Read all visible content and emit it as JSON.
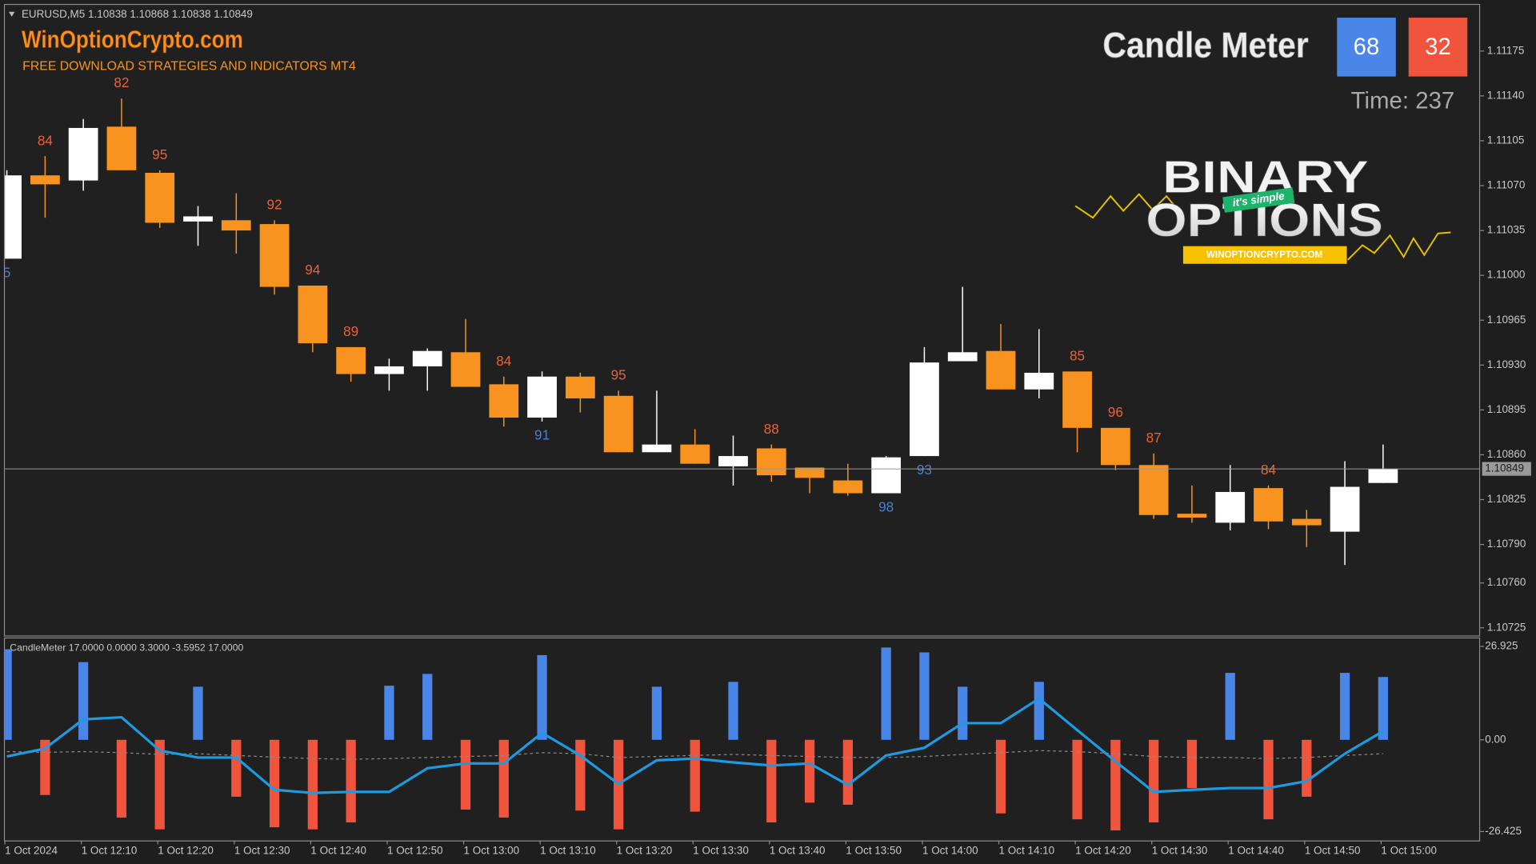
{
  "header": {
    "symbol_info": "EURUSD,M5  1.10838 1.10868 1.10838 1.10849"
  },
  "watermark": {
    "site": "WinOptionCrypto.com",
    "tagline": "FREE DOWNLOAD STRATEGIES AND INDICATORS MT4"
  },
  "meter": {
    "title": "Candle Meter",
    "buy": 68,
    "sell": 32,
    "time_label": "Time: 237",
    "buy_color": "#4a86e8",
    "sell_color": "#f0543c"
  },
  "logo": {
    "line1": "BINARY",
    "ribbon": "it's simple",
    "line2": "OPTIONS",
    "site": "WINOPTIONCRYPTO.COM"
  },
  "chart_data": [
    {
      "type": "candlestick",
      "categories": [
        "1 Oct 2024",
        null,
        "1 Oct 12:10",
        null,
        "1 Oct 12:20",
        null,
        "1 Oct 12:30",
        null,
        "1 Oct 12:40",
        null,
        "1 Oct 12:50",
        null,
        "1 Oct 13:00",
        null,
        "1 Oct 13:10",
        null,
        "1 Oct 13:20",
        null,
        "1 Oct 13:30",
        null,
        "1 Oct 13:40",
        null,
        "1 Oct 13:50",
        null,
        "1 Oct 14:00",
        null,
        "1 Oct 14:10",
        null,
        "1 Oct 14:20",
        null,
        "1 Oct 14:30",
        null,
        "1 Oct 14:40",
        null,
        "1 Oct 14:50",
        null,
        "1 Oct 15:00"
      ],
      "ohlc": [
        [
          1.11013,
          1.11082,
          1.11013,
          1.11078
        ],
        [
          1.11078,
          1.11093,
          1.11045,
          1.11071
        ],
        [
          1.11074,
          1.11122,
          1.11066,
          1.11115
        ],
        [
          1.11116,
          1.11138,
          1.11082,
          1.11082
        ],
        [
          1.1108,
          1.11082,
          1.11037,
          1.11041
        ],
        [
          1.11042,
          1.11054,
          1.11023,
          1.11046
        ],
        [
          1.11043,
          1.11064,
          1.11017,
          1.11035
        ],
        [
          1.1104,
          1.11043,
          1.10985,
          1.10991
        ],
        [
          1.10992,
          1.10992,
          1.1094,
          1.10947
        ],
        [
          1.10944,
          1.10944,
          1.10917,
          1.10923
        ],
        [
          1.10923,
          1.10935,
          1.1091,
          1.10929
        ],
        [
          1.10929,
          1.10943,
          1.1091,
          1.10941
        ],
        [
          1.1094,
          1.10966,
          1.10913,
          1.10913
        ],
        [
          1.10915,
          1.10921,
          1.10882,
          1.10889
        ],
        [
          1.10889,
          1.10925,
          1.10886,
          1.10921
        ],
        [
          1.10921,
          1.10924,
          1.10893,
          1.10904
        ],
        [
          1.10906,
          1.1091,
          1.10862,
          1.10862
        ],
        [
          1.10862,
          1.1091,
          1.10862,
          1.10868
        ],
        [
          1.10868,
          1.1088,
          1.10853,
          1.10853
        ],
        [
          1.10851,
          1.10875,
          1.10836,
          1.10859
        ],
        [
          1.10865,
          1.10868,
          1.10839,
          1.10844
        ],
        [
          1.1085,
          1.1085,
          1.1083,
          1.10842
        ],
        [
          1.1084,
          1.10853,
          1.10828,
          1.1083
        ],
        [
          1.1083,
          1.10859,
          1.1083,
          1.10858
        ],
        [
          1.10859,
          1.10944,
          1.10859,
          1.10932
        ],
        [
          1.10933,
          1.10991,
          1.10933,
          1.1094
        ],
        [
          1.10941,
          1.10962,
          1.10911,
          1.10911
        ],
        [
          1.10911,
          1.10958,
          1.10904,
          1.10924
        ],
        [
          1.10925,
          1.10925,
          1.10862,
          1.10881
        ],
        [
          1.10881,
          1.10881,
          1.10848,
          1.10852
        ],
        [
          1.10852,
          1.10861,
          1.1081,
          1.10813
        ],
        [
          1.10814,
          1.10836,
          1.10807,
          1.10811
        ],
        [
          1.10807,
          1.10852,
          1.10801,
          1.10831
        ],
        [
          1.10834,
          1.10836,
          1.10802,
          1.10808
        ],
        [
          1.1081,
          1.10817,
          1.10788,
          1.10805
        ],
        [
          1.108,
          1.10855,
          1.10774,
          1.10835
        ],
        [
          1.10838,
          1.10868,
          1.10838,
          1.10849
        ]
      ],
      "strength_labels": [
        5,
        84,
        null,
        82,
        95,
        null,
        null,
        92,
        94,
        89,
        null,
        null,
        null,
        84,
        91,
        null,
        95,
        null,
        null,
        null,
        88,
        null,
        null,
        98,
        93,
        null,
        null,
        null,
        85,
        96,
        87,
        null,
        null,
        84,
        null,
        null,
        null
      ],
      "up_color": "#ffffff",
      "down_color": "#f7931e",
      "up_label_color": "#4a7fd0",
      "down_label_color": "#e8623a",
      "ylim": [
        1.10719,
        1.11211
      ],
      "yticks": [
        {
          "value": 1.11175,
          "label": "1.11175"
        },
        {
          "value": 1.1114,
          "label": "1.11140"
        },
        {
          "value": 1.11105,
          "label": "1.11105"
        },
        {
          "value": 1.1107,
          "label": "1.11070"
        },
        {
          "value": 1.11035,
          "label": "1.11035"
        },
        {
          "value": 1.11,
          "label": "1.11000"
        },
        {
          "value": 1.10965,
          "label": "1.10965"
        },
        {
          "value": 1.1093,
          "label": "1.10930"
        },
        {
          "value": 1.10895,
          "label": "1.10895"
        },
        {
          "value": 1.1086,
          "label": "1.10860"
        },
        {
          "value": 1.10825,
          "label": "1.10825"
        },
        {
          "value": 1.1079,
          "label": "1.10790"
        },
        {
          "value": 1.1076,
          "label": "1.10760"
        },
        {
          "value": 1.10725,
          "label": "1.10725"
        }
      ],
      "current_price": {
        "value": 1.10849,
        "label": "1.10849"
      }
    },
    {
      "type": "histogram",
      "title": "CandleMeter 17.0000 0.0000 3.3000 -3.5952 17.0000",
      "values": [
        26.1,
        -15.9,
        22.4,
        -22.4,
        -25.8,
        15.3,
        -16.4,
        -25.2,
        -25.8,
        -23.8,
        15.6,
        19.0,
        -20.1,
        -22.4,
        24.4,
        -20.4,
        -25.8,
        15.3,
        -20.7,
        16.7,
        -23.8,
        -18.1,
        -18.7,
        26.6,
        25.2,
        15.3,
        -21.2,
        16.7,
        -22.9,
        -26.1,
        -23.8,
        -13.9,
        19.3,
        -22.9,
        -16.4,
        19.3,
        18.1
      ],
      "line_values": [
        -4.8,
        -2.5,
        5.9,
        6.5,
        -3.1,
        -5.1,
        -5.1,
        -14.4,
        -15.3,
        -15.0,
        -15.0,
        -8.2,
        -6.8,
        -6.8,
        2.0,
        -4.5,
        -12.7,
        -5.9,
        -5.4,
        -6.5,
        -7.4,
        -6.8,
        -13.0,
        -4.5,
        -2.3,
        4.8,
        4.8,
        11.9,
        2.8,
        -6.2,
        -15.0,
        -14.4,
        -13.9,
        -13.9,
        -11.9,
        -4.0,
        2.5
      ],
      "signal_values": [
        -3.4,
        -3.6,
        -3.4,
        -3.7,
        -4.2,
        -4.0,
        -4.5,
        -5.0,
        -5.4,
        -5.6,
        -5.4,
        -5.1,
        -4.8,
        -4.5,
        -3.7,
        -4.0,
        -5.1,
        -4.8,
        -4.5,
        -4.2,
        -4.5,
        -4.8,
        -5.1,
        -5.1,
        -4.8,
        -4.2,
        -3.7,
        -3.1,
        -3.4,
        -4.0,
        -4.8,
        -5.1,
        -5.1,
        -5.4,
        -5.1,
        -4.5,
        -4.0
      ],
      "up_color": "#4a86e8",
      "down_color": "#f0543c",
      "line_color": "#1e9be0",
      "signal_color": "#8a8a8a",
      "ylim": [
        -29,
        29.5
      ],
      "yticks": [
        26.925,
        {
          "value": 0,
          "label": "0.00"
        },
        -26.425
      ]
    }
  ]
}
